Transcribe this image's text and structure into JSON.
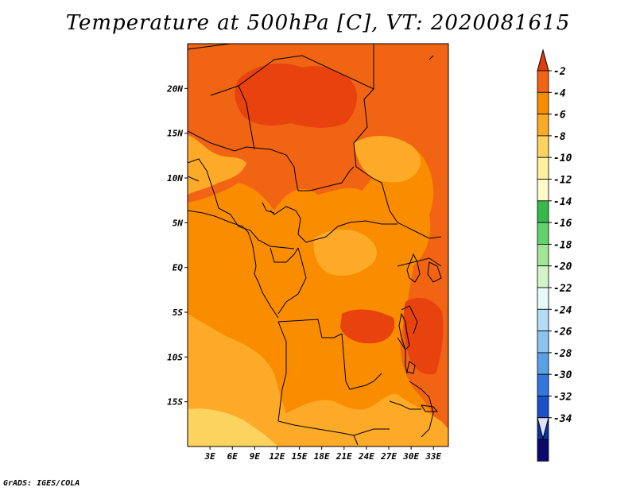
{
  "title": "Temperature at 500hPa [C], VT: 2020081615",
  "credit": "GrADS: IGES/COLA",
  "map": {
    "lon_range": [
      0,
      35
    ],
    "lat_range": [
      -20,
      25
    ],
    "lat_ticks": [
      {
        "value": 20,
        "label": "20N"
      },
      {
        "value": 15,
        "label": "15N"
      },
      {
        "value": 10,
        "label": "10N"
      },
      {
        "value": 5,
        "label": "5N"
      },
      {
        "value": 0,
        "label": "EQ"
      },
      {
        "value": -5,
        "label": "5S"
      },
      {
        "value": -10,
        "label": "10S"
      },
      {
        "value": -15,
        "label": "15S"
      }
    ],
    "lon_ticks": [
      {
        "value": 3,
        "label": "3E"
      },
      {
        "value": 6,
        "label": "6E"
      },
      {
        "value": 9,
        "label": "9E"
      },
      {
        "value": 12,
        "label": "12E"
      },
      {
        "value": 15,
        "label": "15E"
      },
      {
        "value": 18,
        "label": "18E"
      },
      {
        "value": 21,
        "label": "21E"
      },
      {
        "value": 24,
        "label": "24E"
      },
      {
        "value": 27,
        "label": "27E"
      },
      {
        "value": 30,
        "label": "30E"
      },
      {
        "value": 33,
        "label": "33E"
      }
    ],
    "colors": {
      "gt_-4": "#f06414",
      "-6_-4": "#fa8c00",
      "-8_-6": "#fcaa28",
      "-10_-8": "#fdd360",
      "darker_core": "#e8420e"
    }
  },
  "colorbar": {
    "labels": [
      "-2",
      "-4",
      "-6",
      "-8",
      "-10",
      "-12",
      "-14",
      "-16",
      "-18",
      "-20",
      "-22",
      "-24",
      "-26",
      "-28",
      "-30",
      "-32",
      "-34"
    ],
    "top_color": "#e23c0c",
    "bottom_color": "#e0e0ff",
    "colors": [
      "#f06414",
      "#fa8c00",
      "#fcaa28",
      "#fdd360",
      "#fff0a0",
      "#fffac8",
      "#36b94c",
      "#62d36a",
      "#a0e696",
      "#d2f5c8",
      "#e6fafa",
      "#b4dcf5",
      "#8cc4f0",
      "#5aa0e6",
      "#3278dc",
      "#1c50c8",
      "#0a32a0",
      "#0a0a6e"
    ]
  }
}
